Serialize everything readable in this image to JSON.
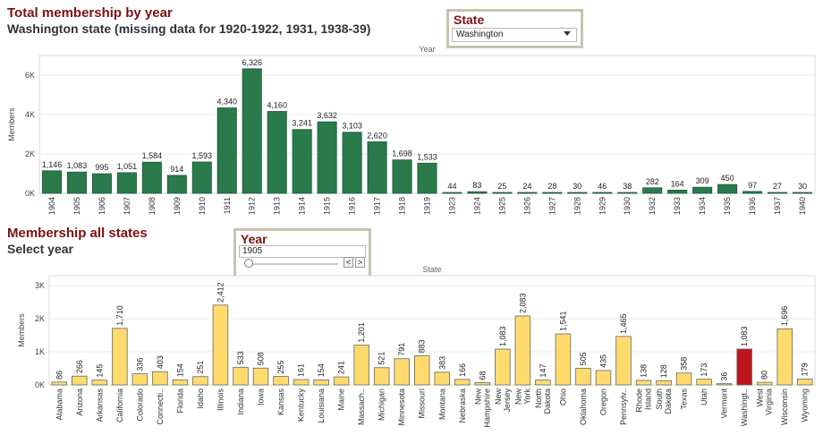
{
  "header1": {
    "title": "Total membership by year",
    "subtitle": "Washington state (missing data for 1920-1922, 1931, 1938-39)"
  },
  "header2": {
    "title": "Membership all states",
    "subtitle": "Select year"
  },
  "state_filter": {
    "title": "State",
    "value": "Washington"
  },
  "year_filter": {
    "title": "Year",
    "value": "1905",
    "prev_glyph": "<",
    "next_glyph": ">"
  },
  "colors": {
    "green": "#2a7a4b",
    "yellow": "#ffdb6e",
    "red": "#c0141c"
  },
  "chart_data": [
    {
      "type": "bar",
      "x_title": "Year",
      "ylabel": "Members",
      "ylim": [
        0,
        7000
      ],
      "yticks": [
        "0K",
        "2K",
        "4K",
        "6K"
      ],
      "categories": [
        "1904",
        "1905",
        "1906",
        "1907",
        "1908",
        "1909",
        "1910",
        "1911",
        "1912",
        "1913",
        "1914",
        "1915",
        "1916",
        "1917",
        "1918",
        "1919",
        "1923",
        "1924",
        "1925",
        "1926",
        "1927",
        "1928",
        "1929",
        "1930",
        "1932",
        "1933",
        "1934",
        "1935",
        "1936",
        "1937",
        "1940"
      ],
      "values": [
        1146,
        1083,
        995,
        1051,
        1584,
        914,
        1593,
        4340,
        6326,
        4160,
        3241,
        3632,
        3103,
        2620,
        1698,
        1533,
        44,
        83,
        25,
        24,
        28,
        30,
        46,
        38,
        282,
        164,
        309,
        450,
        97,
        27,
        30
      ],
      "labels": [
        "1,146",
        "1,083",
        "995",
        "1,051",
        "1,584",
        "914",
        "1,593",
        "4,340",
        "6,326",
        "4,160",
        "3,241",
        "3,632",
        "3,103",
        "2,620",
        "1,698",
        "1,533",
        "44",
        "83",
        "25",
        "24",
        "28",
        "30",
        "46",
        "38",
        "282",
        "164",
        "309",
        "450",
        "97",
        "27",
        "30"
      ]
    },
    {
      "type": "bar",
      "x_title": "State",
      "ylabel": "Members",
      "ylim": [
        0,
        3300
      ],
      "yticks": [
        "0K",
        "1K",
        "2K",
        "3K"
      ],
      "highlight": "Washington",
      "categories": [
        "Alabama",
        "Arizona",
        "Arkansas",
        "California",
        "Colorado",
        "Connecticut",
        "Florida",
        "Idaho",
        "Illinois",
        "Indiana",
        "Iowa",
        "Kansas",
        "Kentucky",
        "Louisiana",
        "Maine",
        "Massachusetts",
        "Michigan",
        "Minnesota",
        "Missouri",
        "Montana",
        "Nebraska",
        "New Hampshire",
        "New Jersey",
        "New York",
        "North Dakota",
        "Ohio",
        "Oklahoma",
        "Oregon",
        "Pennsylvania",
        "Rhode Island",
        "South Dakota",
        "Texas",
        "Utah",
        "Vermont",
        "Washington",
        "West Virginia",
        "Wisconsin",
        "Wyoming"
      ],
      "tick_labels": [
        "Alabama",
        "Arizona",
        "Arkansas",
        "California",
        "Colorado",
        "Connecti..",
        "Florida",
        "Idaho",
        "Illinois",
        "Indiana",
        "Iowa",
        "Kansas",
        "Kentucky",
        "Louisiana",
        "Maine",
        "Massach..",
        "Michigan",
        "Minnesota",
        "Missouri",
        "Montana",
        "Nebraska",
        "New Hampshire",
        "New Jersey",
        "New York",
        "North Dakota",
        "Ohio",
        "Oklahoma",
        "Oregon",
        "Pennsylv..",
        "Rhode Island",
        "South Dakota",
        "Texas",
        "Utah",
        "Vermont",
        "Washingt..",
        "West Virginia",
        "Wisconsin",
        "Wyoming"
      ],
      "values": [
        86,
        266,
        145,
        1710,
        336,
        403,
        154,
        251,
        2412,
        533,
        508,
        255,
        161,
        154,
        241,
        1201,
        521,
        791,
        883,
        383,
        166,
        68,
        1083,
        2083,
        147,
        1541,
        505,
        435,
        1465,
        138,
        128,
        358,
        173,
        36,
        1083,
        80,
        1696,
        179
      ],
      "labels": [
        "86",
        "266",
        "145",
        "1,710",
        "336",
        "403",
        "154",
        "251",
        "2,412",
        "533",
        "508",
        "255",
        "161",
        "154",
        "241",
        "1,201",
        "521",
        "791",
        "883",
        "383",
        "166",
        "68",
        "1,083",
        "2,083",
        "147",
        "1,541",
        "505",
        "435",
        "1,465",
        "138",
        "128",
        "358",
        "173",
        "36",
        "1,083",
        "80",
        "1,696",
        "179"
      ]
    }
  ]
}
